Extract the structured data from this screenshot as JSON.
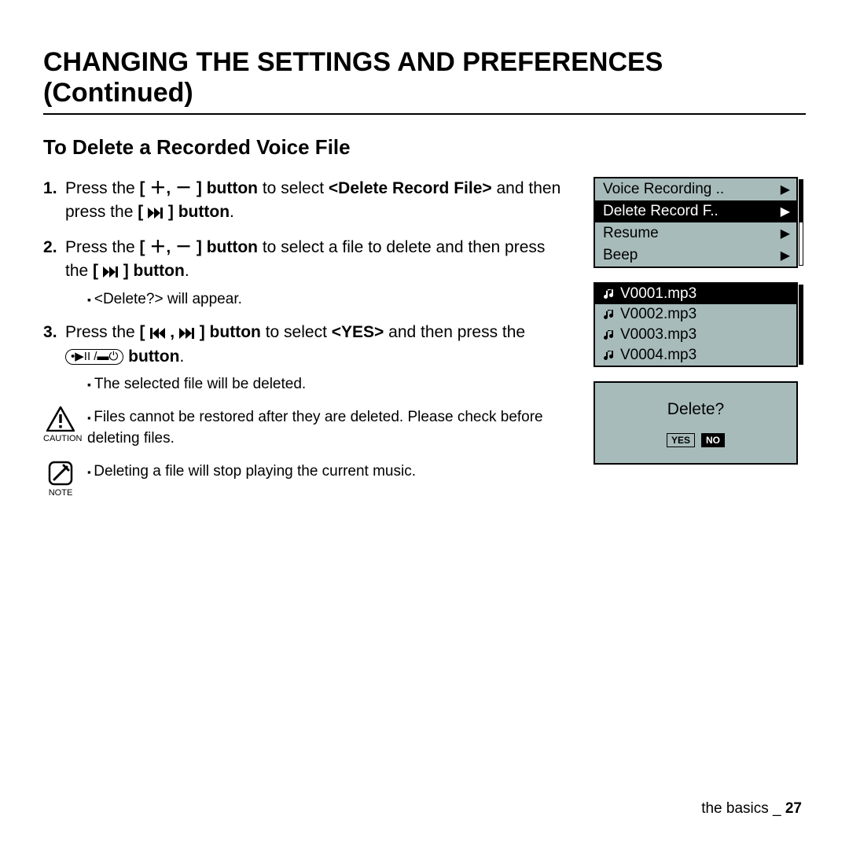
{
  "title": "CHANGING THE SETTINGS AND PREFERENCES (Continued)",
  "section": "To Delete a Recorded Voice File",
  "steps": {
    "s1a": "Press the ",
    "s1b": "[ ＋, － ] button",
    "s1c": " to select ",
    "s1d": "<Delete Record File>",
    "s1e": " and then press the ",
    "s1f": "] button",
    "s2a": "Press the ",
    "s2b": "[ ＋, － ] button",
    "s2c": " to select a file to delete and then press the ",
    "s2d": "] button",
    "s2sub": "<Delete?> will appear.",
    "s3a": "Press the ",
    "s3b": "] button",
    "s3c": " to select ",
    "s3d": "<YES>",
    "s3e": " and then press the  ",
    "s3f": "  button",
    "s3sub": "The selected file will be deleted."
  },
  "caution_label": "CAUTION",
  "caution_text": "Files cannot be restored after they are deleted. Please check before deleting files.",
  "note_label": "NOTE",
  "note_text": "Deleting a file will stop playing the current music.",
  "menu": {
    "items": [
      "Voice Recording ..",
      "Delete Record F..",
      "Resume",
      "Beep"
    ],
    "selected_index": 1
  },
  "files": {
    "items": [
      "V0001.mp3",
      "V0002.mp3",
      "V0003.mp3",
      "V0004.mp3"
    ],
    "selected_index": 0
  },
  "dialog": {
    "question": "Delete?",
    "yes": "YES",
    "no": "NO"
  },
  "footer": {
    "section": "the basics",
    "sep": " _ ",
    "page": "27"
  },
  "colors": {
    "screen_bg": "#a8bbbb"
  }
}
